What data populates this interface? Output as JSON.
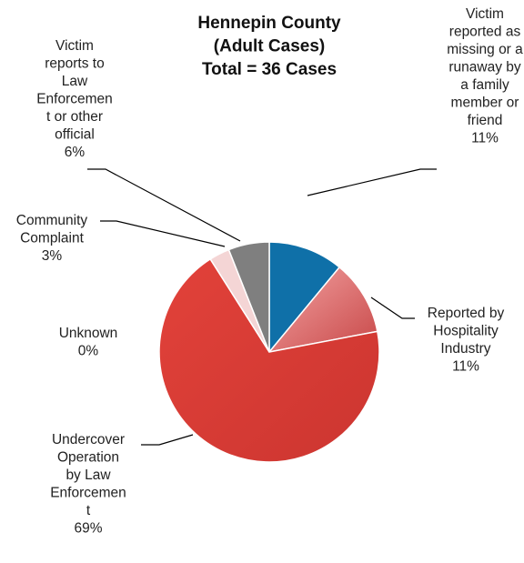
{
  "chart_data": {
    "type": "pie",
    "title_lines": [
      "Hennepin County",
      "(Adult Cases)",
      "Total = 36 Cases"
    ],
    "slices": [
      {
        "key": "missing",
        "label_lines": [
          "Victim",
          "reported as",
          "missing or a",
          "runaway by",
          "a family",
          "member or",
          "friend"
        ],
        "percent_label": "11%",
        "value": 11,
        "color": "#0f70a8"
      },
      {
        "key": "hospitality",
        "label_lines": [
          "Reported by",
          "Hospitality",
          "Industry"
        ],
        "percent_label": "11%",
        "value": 11,
        "color": "#e46a6a"
      },
      {
        "key": "undercover",
        "label_lines": [
          "Undercover",
          "Operation",
          "by Law",
          "Enforcemen",
          "t"
        ],
        "percent_label": "69%",
        "value": 69,
        "color": "#d63a34"
      },
      {
        "key": "unknown",
        "label_lines": [
          "Unknown"
        ],
        "percent_label": "0%",
        "value": 0,
        "color": "#f2c6c6"
      },
      {
        "key": "community",
        "label_lines": [
          "Community",
          "Complaint"
        ],
        "percent_label": "3%",
        "value": 3,
        "color": "#f4d5d5"
      },
      {
        "key": "victim-reports",
        "label_lines": [
          "Victim",
          "reports to",
          "Law",
          "Enforcemen",
          "t or other",
          "official"
        ],
        "percent_label": "6%",
        "value": 6,
        "color": "#7f7f7f"
      }
    ]
  }
}
